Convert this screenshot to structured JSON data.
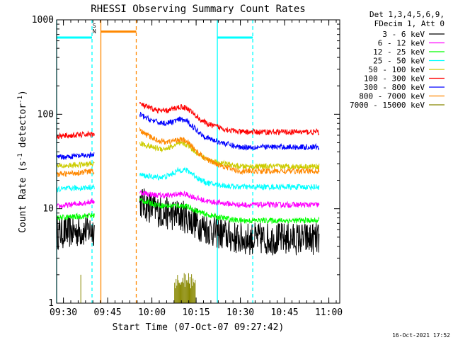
{
  "chart_data": {
    "type": "line",
    "title": "RHESSI Observing Summary Count Rates",
    "xlabel": "Start Time (07-Oct-07 09:27:42)",
    "ylabel_main": "Count Rate (s",
    "ylabel_sup1": "-1",
    "ylabel_mid": " detector",
    "ylabel_sup2": "-1",
    "ylabel_end": ")",
    "y_scale": "log",
    "ylim": [
      1,
      1000
    ],
    "xlim_minutes": [
      0,
      96
    ],
    "x_tick_minutes": [
      2.3,
      17.3,
      32.3,
      47.3,
      62.3,
      77.3,
      92.3
    ],
    "x_ticks": [
      "09:30",
      "09:45",
      "10:00",
      "10:15",
      "10:30",
      "10:45",
      "11:00"
    ],
    "y_tick_values": [
      10,
      100,
      1000
    ],
    "y_ticks": [
      "10",
      "100",
      "1000"
    ],
    "y_tick_extra_value": 1,
    "y_tick_extra": "1",
    "legend_header": [
      "Det 1,3,4,5,6,9,",
      "FDecim 1, Att 0"
    ],
    "series": [
      {
        "name": "3 - 6 keV",
        "color": "#000000",
        "seg1": [
          5.5,
          6.0
        ],
        "seg2": [
          12,
          4.8
        ]
      },
      {
        "name": "6 - 12 keV",
        "color": "#ff00ff",
        "seg1": [
          10.5,
          12
        ],
        "seg2": [
          15,
          11
        ]
      },
      {
        "name": "12 - 25 keV",
        "color": "#00ff00",
        "seg1": [
          8,
          8.5
        ],
        "seg2": [
          12.5,
          7.5
        ]
      },
      {
        "name": "25 - 50 keV",
        "color": "#00ffff",
        "seg1": [
          16,
          17
        ],
        "seg2": [
          23,
          17
        ]
      },
      {
        "name": "50 - 100 keV",
        "color": "#cccc00",
        "seg1": [
          28,
          30
        ],
        "seg2": [
          50,
          28
        ]
      },
      {
        "name": "100 - 300 keV",
        "color": "#ff0000",
        "seg1": [
          58,
          62
        ],
        "seg2": [
          130,
          65
        ]
      },
      {
        "name": "300 - 800 keV",
        "color": "#0000ff",
        "seg1": [
          35,
          37
        ],
        "seg2": [
          100,
          45
        ]
      },
      {
        "name": "800 - 7000 keV",
        "color": "#ff8800",
        "seg1": [
          23,
          25
        ],
        "seg2": [
          68,
          25
        ]
      },
      {
        "name": "7000 - 15000 keV",
        "color": "#888800",
        "seg1": [
          1,
          1
        ],
        "seg2": [
          1,
          1
        ]
      }
    ],
    "saa_segments": [
      {
        "x": [
          0,
          12
        ],
        "y": 650,
        "color": "#00ffff"
      },
      {
        "x": [
          54.5,
          66.5
        ],
        "y": 650,
        "color": "#00ffff"
      },
      {
        "x": [
          15,
          27
        ],
        "y": 750,
        "color": "#ff8800"
      }
    ],
    "vertical_markers": [
      {
        "x": 0,
        "color": "#00ffff",
        "dash": false
      },
      {
        "x": 12,
        "color": "#00ffff",
        "dash": true
      },
      {
        "x": 15,
        "color": "#ff8800",
        "dash": false
      },
      {
        "x": 27,
        "color": "#ff8800",
        "dash": true
      },
      {
        "x": 54.5,
        "color": "#00ffff",
        "dash": false
      },
      {
        "x": 66.5,
        "color": "#00ffff",
        "dash": true
      }
    ],
    "flags": [
      {
        "label": "S",
        "x": 12.8,
        "y": 830,
        "color": "#ff8800"
      },
      {
        "label": "N",
        "x": 12.8,
        "y": 720,
        "color": "#00ffff"
      }
    ]
  },
  "timestamp": "16-Oct-2021 17:52"
}
